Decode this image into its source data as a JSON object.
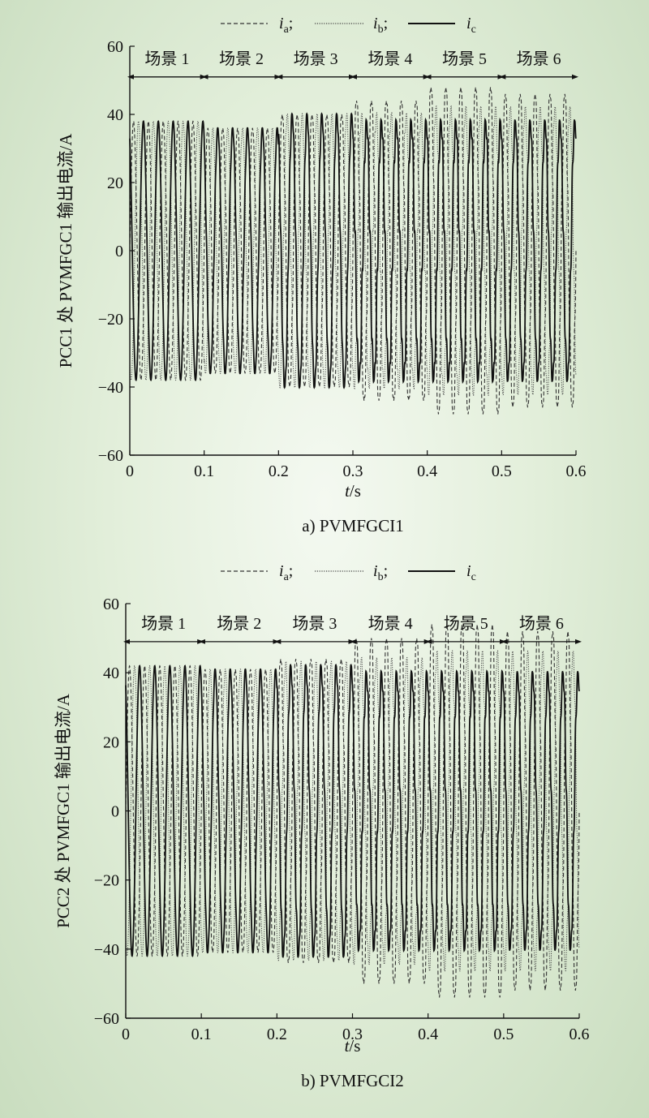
{
  "chart_data": [
    {
      "type": "line",
      "title": "a) PVMFGCI1",
      "xlabel_var": "t",
      "xlabel_unit": "/s",
      "ylabel": "PCC1 处 PVMFGC1 输出电流/A",
      "xlim": [
        0,
        0.6
      ],
      "ylim": [
        -60,
        60
      ],
      "x_ticks": [
        "0",
        "0.1",
        "0.2",
        "0.3",
        "0.4",
        "0.5",
        "0.6"
      ],
      "y_ticks": [
        "60",
        "40",
        "20",
        "0",
        "-20",
        "-40",
        "-60"
      ],
      "legend": [
        {
          "base": "i",
          "sub": "a",
          "suffix": ";",
          "style": "dashed"
        },
        {
          "base": "i",
          "sub": "b",
          "suffix": ";",
          "style": "dotted"
        },
        {
          "base": "i",
          "sub": "c",
          "suffix": "",
          "style": "solid"
        }
      ],
      "scenarios": [
        {
          "label": "场景 1",
          "start": 0.0,
          "end": 0.1
        },
        {
          "label": "场景 2",
          "start": 0.1,
          "end": 0.2
        },
        {
          "label": "场景 3",
          "start": 0.2,
          "end": 0.3
        },
        {
          "label": "场景 4",
          "start": 0.3,
          "end": 0.4
        },
        {
          "label": "场景 5",
          "start": 0.4,
          "end": 0.5
        },
        {
          "label": "场景 6",
          "start": 0.5,
          "end": 0.6
        }
      ],
      "scenario_arrow_y": 51,
      "frequency_hz": 50,
      "segments": [
        {
          "start": 0.0,
          "end": 0.1,
          "amp_a": 38,
          "amp_b": 38,
          "amp_c": 38,
          "freq_mult": 1.0,
          "ripple": 0
        },
        {
          "start": 0.1,
          "end": 0.2,
          "amp_a": 36,
          "amp_b": 36,
          "amp_c": 36,
          "freq_mult": 1.0,
          "ripple": 2
        },
        {
          "start": 0.2,
          "end": 0.3,
          "amp_a": 40,
          "amp_b": 40,
          "amp_c": 40,
          "freq_mult": 1.0,
          "ripple": 4
        },
        {
          "start": 0.3,
          "end": 0.4,
          "amp_a": 44,
          "amp_b": 40,
          "amp_c": 38,
          "freq_mult": 1.0,
          "ripple": 6
        },
        {
          "start": 0.4,
          "end": 0.5,
          "amp_a": 48,
          "amp_b": 42,
          "amp_c": 38,
          "freq_mult": 1.0,
          "ripple": 6
        },
        {
          "start": 0.5,
          "end": 0.6,
          "amp_a": 46,
          "amp_b": 42,
          "amp_c": 38,
          "freq_mult": 1.0,
          "ripple": 5
        }
      ]
    },
    {
      "type": "line",
      "title": "b) PVMFGCI2",
      "xlabel_var": "t",
      "xlabel_unit": "/s",
      "ylabel": "PCC2 处 PVMFGC1 输出电流/A",
      "xlim": [
        0,
        0.6
      ],
      "ylim": [
        -60,
        60
      ],
      "x_ticks": [
        "0",
        "0.1",
        "0.2",
        "0.3",
        "0.4",
        "0.5",
        "0.6"
      ],
      "y_ticks": [
        "60",
        "40",
        "20",
        "0",
        "-20",
        "-40",
        "-60"
      ],
      "legend": [
        {
          "base": "i",
          "sub": "a",
          "suffix": ";",
          "style": "dashed"
        },
        {
          "base": "i",
          "sub": "b",
          "suffix": ";",
          "style": "dotted"
        },
        {
          "base": "i",
          "sub": "c",
          "suffix": "",
          "style": "solid"
        }
      ],
      "scenarios": [
        {
          "label": "场景 1",
          "start": 0.0,
          "end": 0.1
        },
        {
          "label": "场景 2",
          "start": 0.1,
          "end": 0.2
        },
        {
          "label": "场景 3",
          "start": 0.2,
          "end": 0.3
        },
        {
          "label": "场景 4",
          "start": 0.3,
          "end": 0.4
        },
        {
          "label": "场景 5",
          "start": 0.4,
          "end": 0.5
        },
        {
          "label": "场景 6",
          "start": 0.5,
          "end": 0.6
        }
      ],
      "scenario_arrow_y": 49,
      "frequency_hz": 50,
      "segments": [
        {
          "start": 0.0,
          "end": 0.1,
          "amp_a": 42,
          "amp_b": 42,
          "amp_c": 42,
          "freq_mult": 1.0,
          "ripple": 0
        },
        {
          "start": 0.1,
          "end": 0.2,
          "amp_a": 41,
          "amp_b": 41,
          "amp_c": 41,
          "freq_mult": 1.0,
          "ripple": 2
        },
        {
          "start": 0.2,
          "end": 0.3,
          "amp_a": 44,
          "amp_b": 43,
          "amp_c": 42,
          "freq_mult": 1.0,
          "ripple": 5
        },
        {
          "start": 0.3,
          "end": 0.4,
          "amp_a": 50,
          "amp_b": 44,
          "amp_c": 40,
          "freq_mult": 1.0,
          "ripple": 6
        },
        {
          "start": 0.4,
          "end": 0.5,
          "amp_a": 54,
          "amp_b": 46,
          "amp_c": 40,
          "freq_mult": 1.0,
          "ripple": 6
        },
        {
          "start": 0.5,
          "end": 0.6,
          "amp_a": 52,
          "amp_b": 46,
          "amp_c": 40,
          "freq_mult": 1.0,
          "ripple": 5
        }
      ]
    }
  ]
}
